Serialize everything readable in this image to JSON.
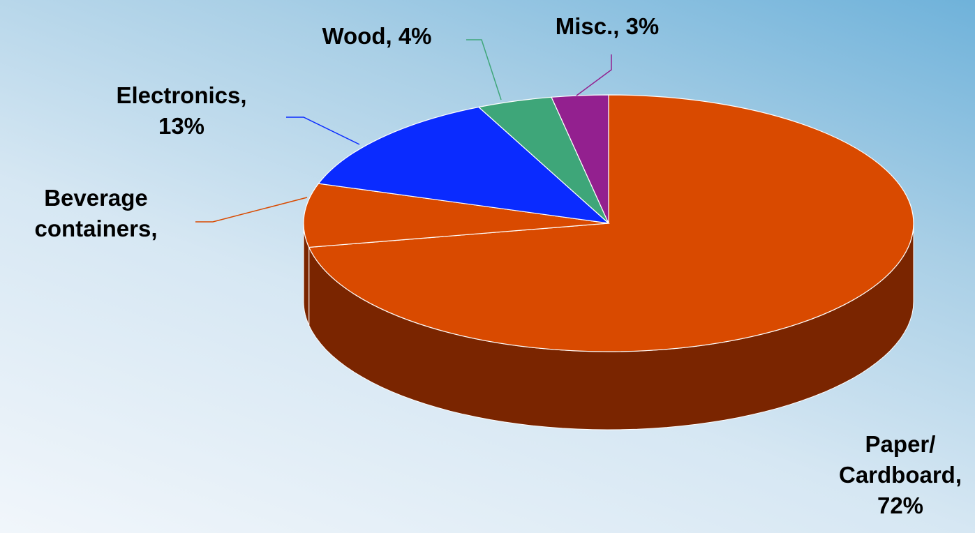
{
  "chart_data": {
    "type": "pie",
    "title": "",
    "style": "3d",
    "slices": [
      {
        "name": "Paper/ Cardboard",
        "label_lines": [
          "Paper/",
          "Cardboard,",
          "72%"
        ],
        "value": 72,
        "color": "#d94a00",
        "side_color": "#7a2500"
      },
      {
        "name": "Beverage containers",
        "label_lines": [
          "Beverage",
          "containers,"
        ],
        "value": 8,
        "color": "#d94a00",
        "side_color": "#7a2500"
      },
      {
        "name": "Electronics",
        "label_lines": [
          "Electronics,",
          "13%"
        ],
        "value": 13,
        "color": "#0a2bff",
        "side_color": "#061a99"
      },
      {
        "name": "Wood",
        "label_lines": [
          "Wood, 4%"
        ],
        "value": 4,
        "color": "#3ea679",
        "side_color": "#256548"
      },
      {
        "name": "Misc.",
        "label_lines": [
          "Misc., 3%"
        ],
        "value": 3,
        "color": "#93208f",
        "side_color": "#5a1457"
      }
    ]
  }
}
